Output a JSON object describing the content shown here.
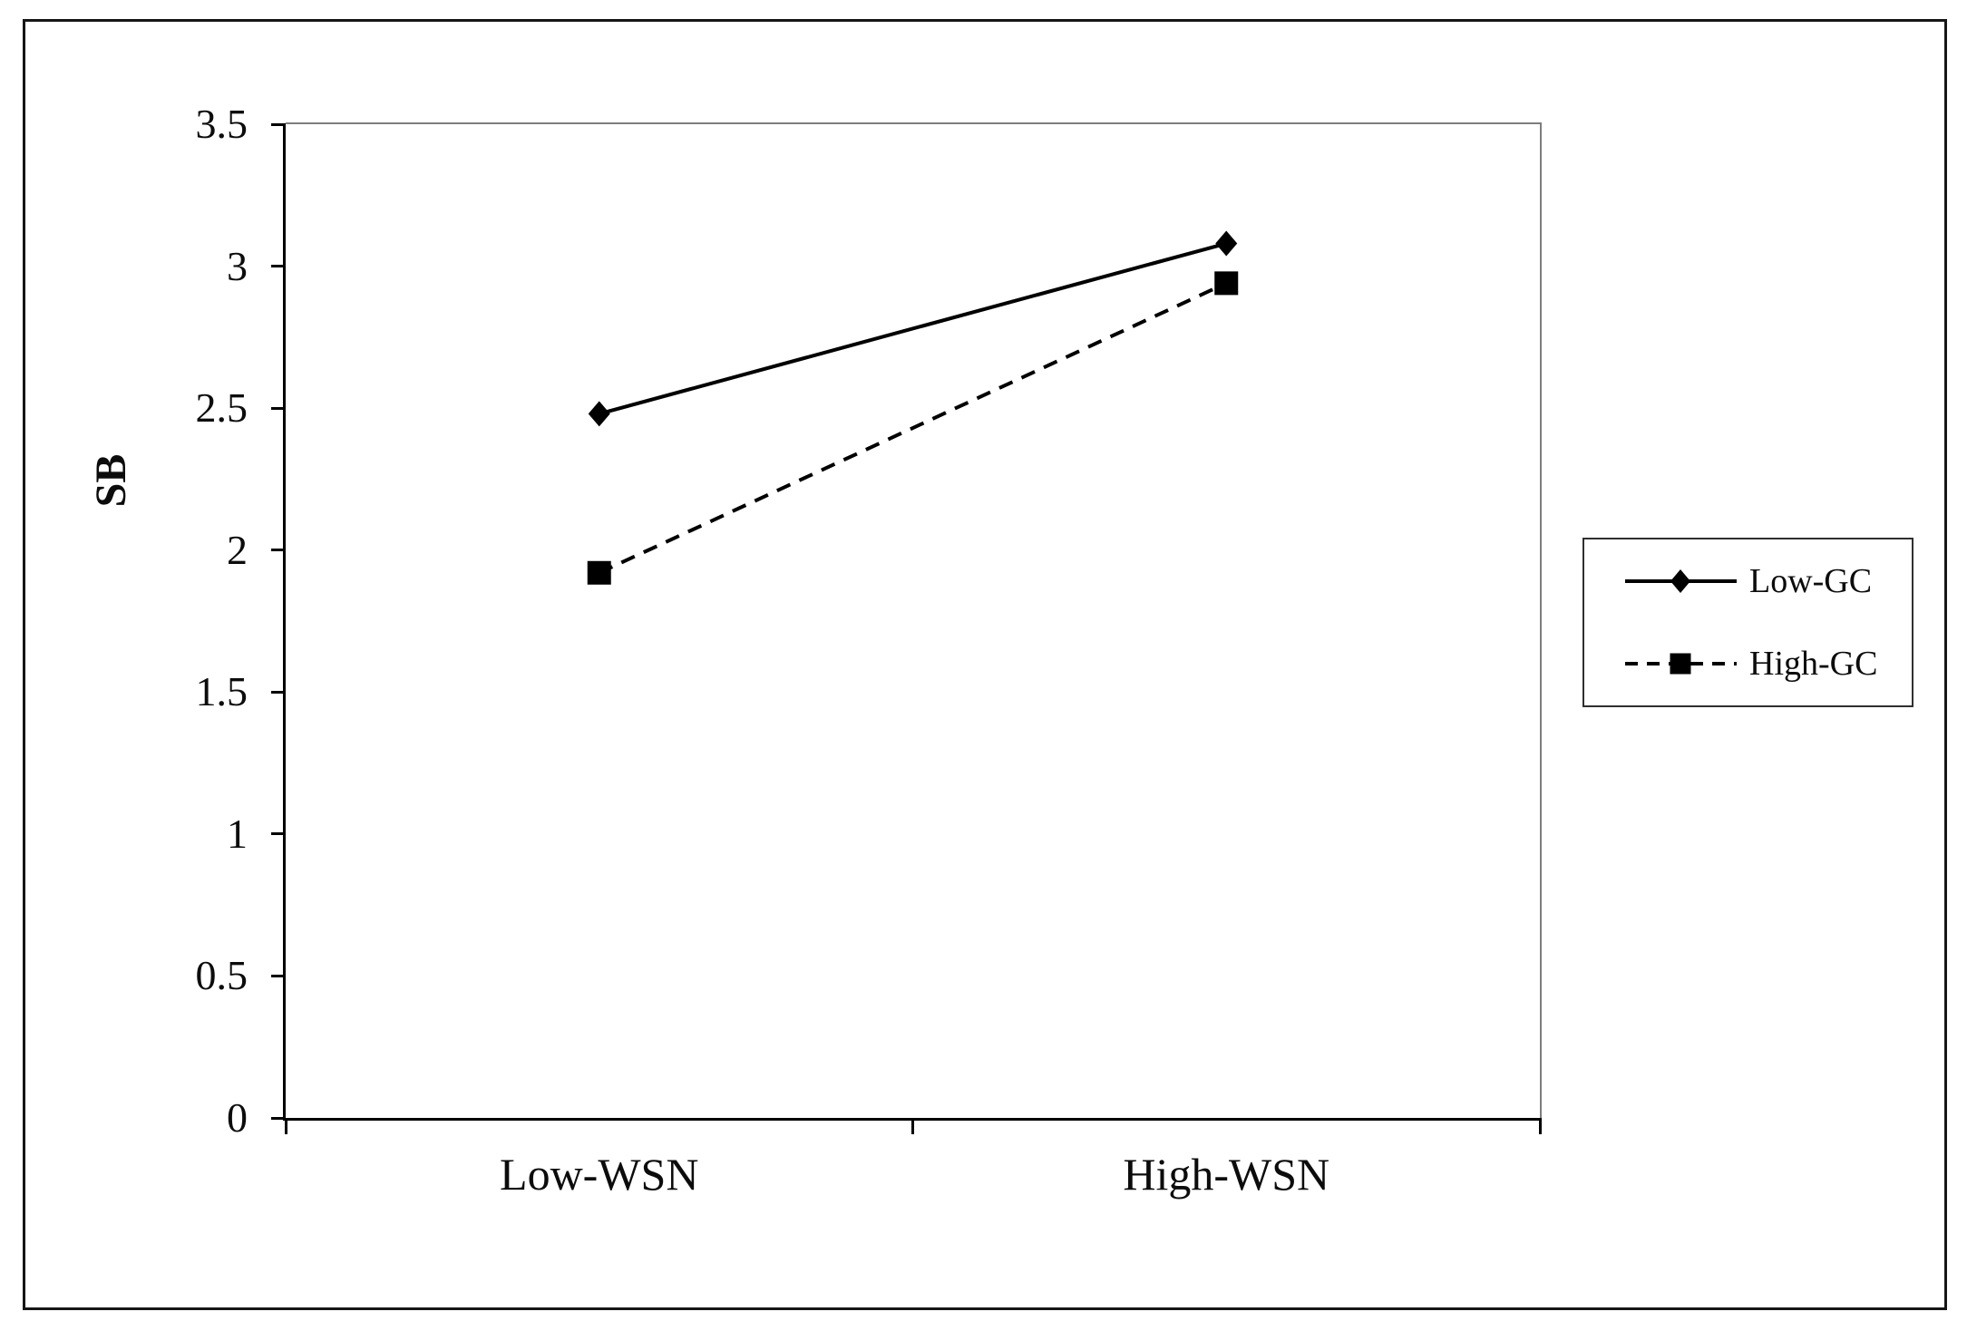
{
  "chart_data": {
    "type": "line",
    "categories": [
      "Low-WSN",
      "High-WSN"
    ],
    "series": [
      {
        "name": "Low-GC",
        "values": [
          2.48,
          3.08
        ],
        "line_style": "solid",
        "marker": "diamond"
      },
      {
        "name": "High-GC",
        "values": [
          1.92,
          2.94
        ],
        "line_style": "dashed",
        "marker": "square"
      }
    ],
    "title": "",
    "xlabel": "",
    "ylabel": "SB",
    "ylim": [
      0,
      3.5
    ],
    "ytick_step": 0.5,
    "ytick_labels": [
      "0",
      "0.5",
      "1",
      "1.5",
      "2",
      "2.5",
      "3",
      "3.5"
    ],
    "grid": false,
    "legend_position": "right"
  },
  "colors": {
    "series": "#000000",
    "axis": "#000000",
    "frame": "#7d7d7d",
    "background": "#ffffff"
  }
}
